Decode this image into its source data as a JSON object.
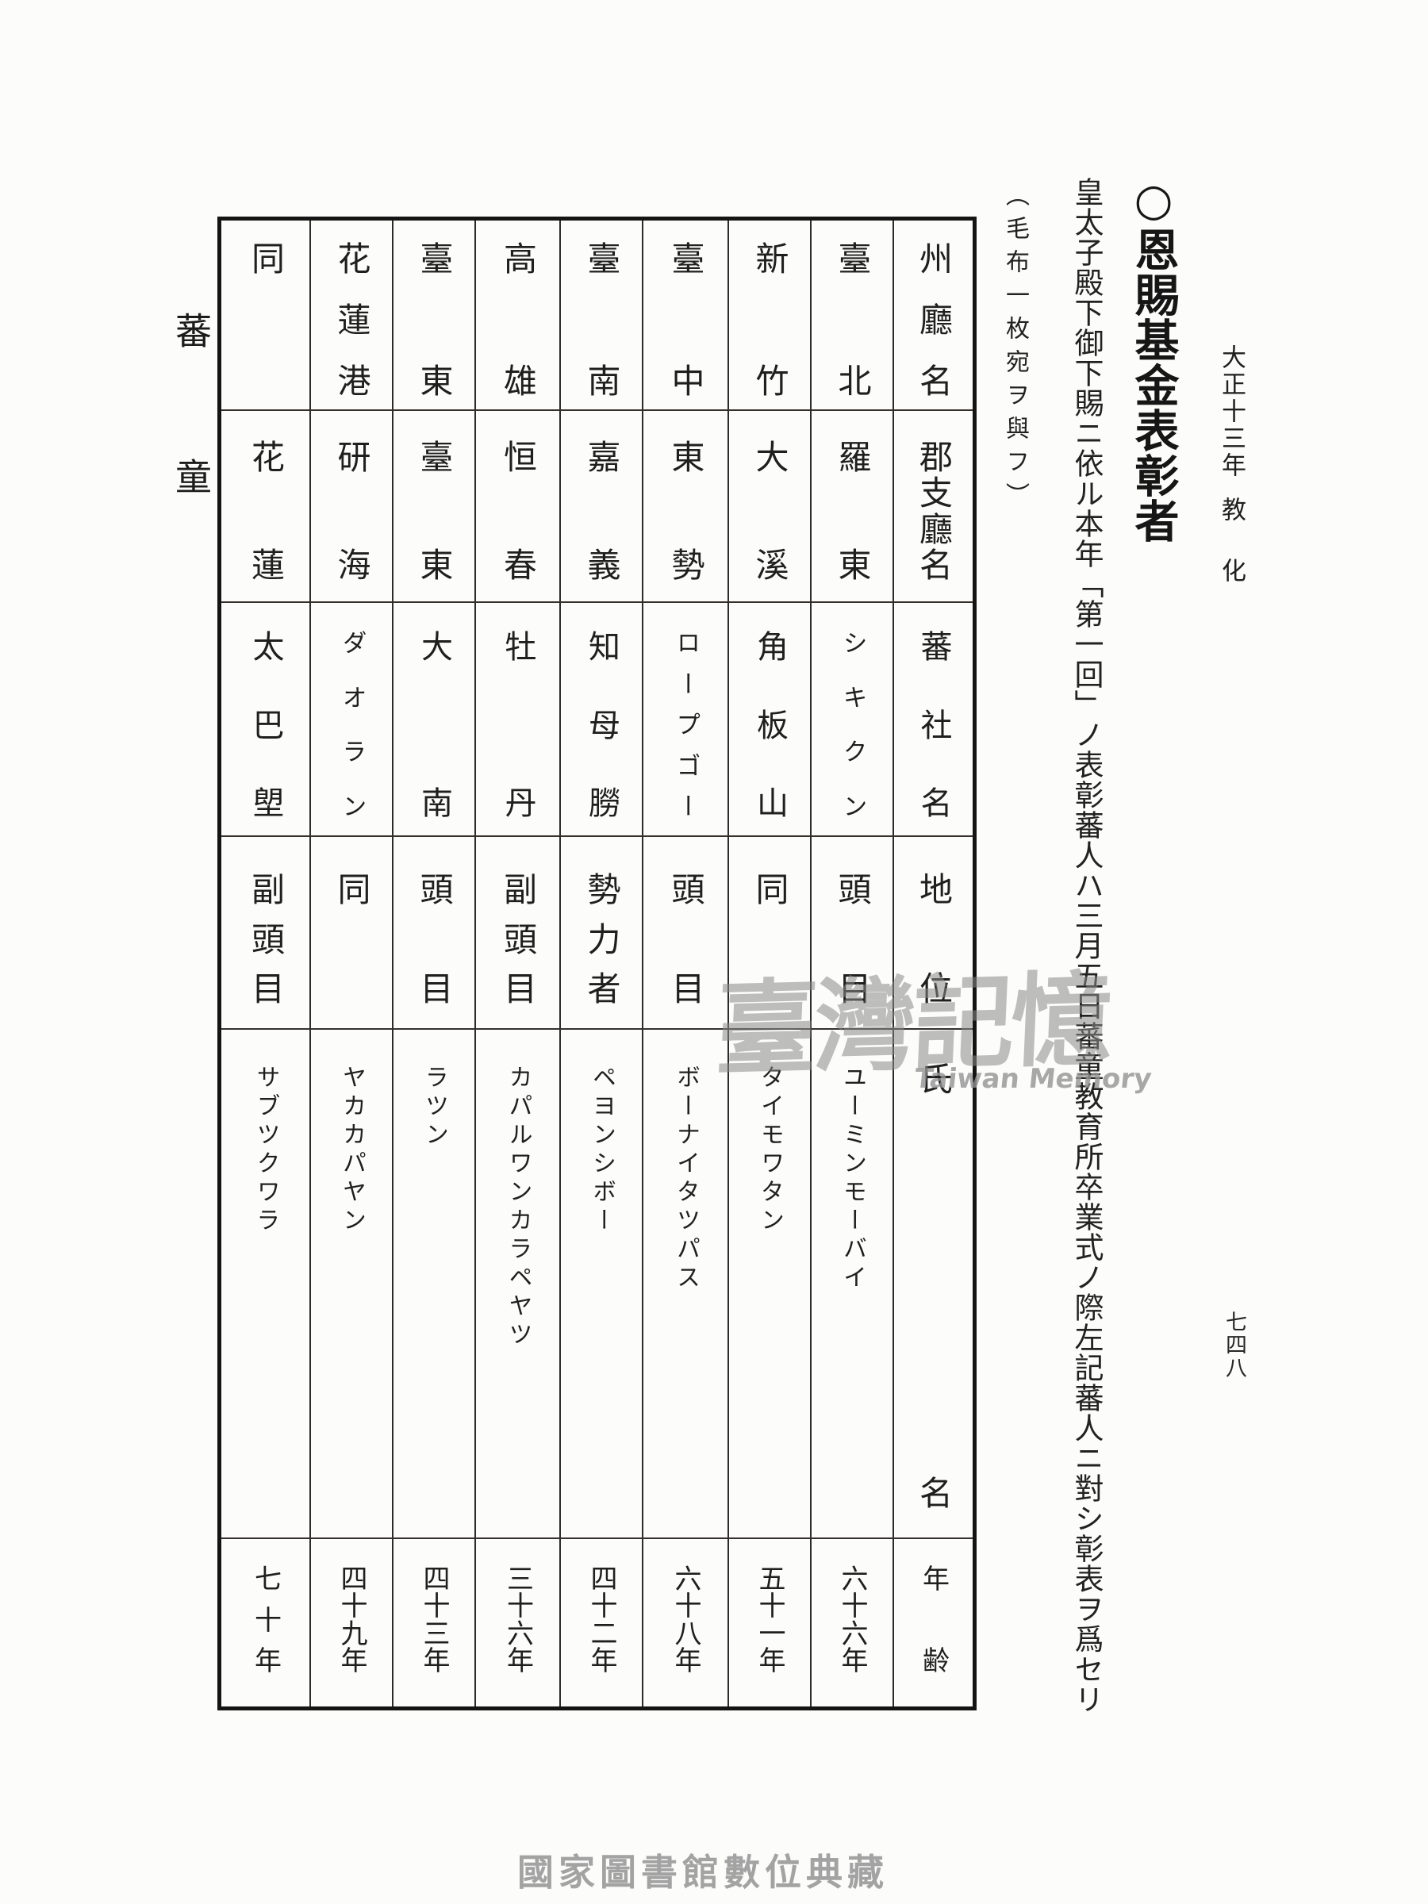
{
  "page_header": {
    "era": "大正十三年",
    "section": "教化",
    "page_number": "七四八"
  },
  "margin_label": "蕃童",
  "article": {
    "title": "○恩賜基金表彰者",
    "body": "皇太子殿下御下賜ニ依ル本年「第一回」ノ表彰蕃人ハ三月五日蕃童教育所卒業式ノ際左記蕃人ニ對シ彰表ヲ爲セリ",
    "note": "（毛布一枚宛ヲ與フ）"
  },
  "table": {
    "headers": [
      "州廳名",
      "郡支廳名",
      "蕃社名",
      "地位",
      "氏名",
      "年齢"
    ],
    "records": [
      {
        "state": "臺北",
        "district": "羅東",
        "village": "シキクン",
        "position": "頭目",
        "name": "ユーミンモーバイ",
        "age": "六十六年"
      },
      {
        "state": "新竹",
        "district": "大溪",
        "village": "角板山",
        "position": "同",
        "name": "タイモワタン",
        "age": "五十一年"
      },
      {
        "state": "臺中",
        "district": "東勢",
        "village": "ロープゴー",
        "position": "頭目",
        "name": "ボーナイタツパス",
        "age": "六十八年"
      },
      {
        "state": "臺南",
        "district": "嘉義",
        "village": "知母朥",
        "position": "勢力者",
        "name": "ペヨンシボー",
        "age": "四十二年"
      },
      {
        "state": "高雄",
        "district": "恒春",
        "village": "牡丹",
        "position": "副頭目",
        "name": "カパルワンカラペヤツ",
        "age": "三十六年"
      },
      {
        "state": "臺東",
        "district": "臺東",
        "village": "大南",
        "position": "頭目",
        "name": "ラツン",
        "age": "四十三年"
      },
      {
        "state": "花蓮港",
        "district": "研海",
        "village": "ダオラン",
        "position": "同",
        "name": "ヤカカパヤン",
        "age": "四十九年"
      },
      {
        "state": "同",
        "district": "花蓮",
        "village": "太巴塱",
        "position": "副頭目",
        "name": "サブツクワラ",
        "age": "七十年"
      }
    ]
  },
  "watermark": {
    "cjk": "臺灣記憶",
    "latin": "Taiwan Memory",
    "color": "#8a8a8a"
  },
  "footer": {
    "credit": "國家圖書館數位典藏",
    "color": "#a3a3a3"
  }
}
